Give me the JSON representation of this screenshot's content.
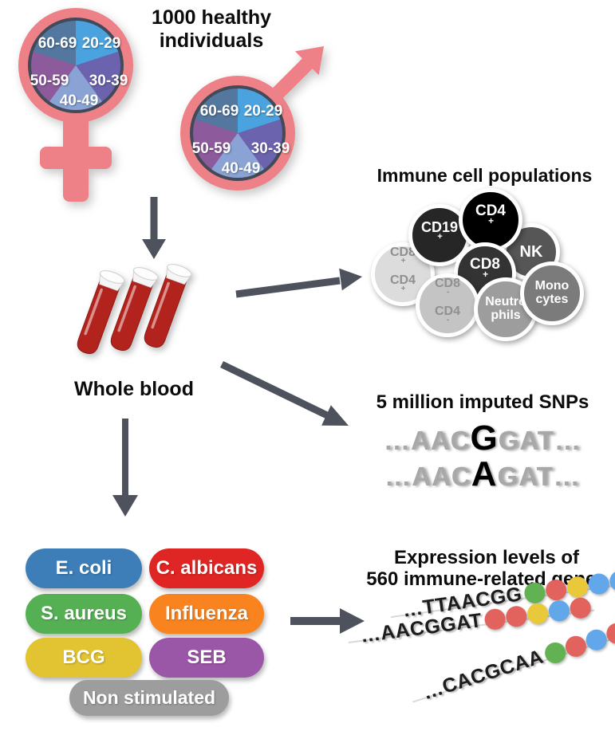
{
  "header": {
    "title": "1000 healthy\nindividuals"
  },
  "demographics": {
    "symbol_color": "#ee8187",
    "female_symbol": "female",
    "male_symbol": "male",
    "age_groups": [
      {
        "label": "20-29",
        "color": "#4aa3df"
      },
      {
        "label": "30-39",
        "color": "#6b63ae"
      },
      {
        "label": "40-49",
        "color": "#8aa3d4"
      },
      {
        "label": "50-59",
        "color": "#8d5a9c"
      },
      {
        "label": "60-69",
        "color": "#53779e"
      }
    ]
  },
  "whole_blood": {
    "label": "Whole blood",
    "tube_color": "#b2231d"
  },
  "immune_cells": {
    "title": "Immune cell populations",
    "cells": [
      {
        "color": "#dcdcdc",
        "text_color": "#909090",
        "lines": [
          {
            "t": "CD8",
            "s": "+"
          },
          {
            "t": "CD4",
            "s": "+"
          }
        ]
      },
      {
        "color": "#262626",
        "text_color": "#ffffff",
        "lines": [
          {
            "t": "CD19",
            "s": "+"
          }
        ]
      },
      {
        "color": "#565656",
        "text_color": "#ffffff",
        "lines": [
          {
            "t": "NK",
            "s": ""
          }
        ]
      },
      {
        "color": "#000000",
        "text_color": "#ffffff",
        "lines": [
          {
            "t": "CD4",
            "s": "+"
          }
        ]
      },
      {
        "color": "#333333",
        "text_color": "#ffffff",
        "lines": [
          {
            "t": "CD8",
            "s": "+"
          }
        ]
      },
      {
        "color": "#c4c4c4",
        "text_color": "#909090",
        "lines": [
          {
            "t": "CD8",
            "s": "-"
          },
          {
            "t": "CD4",
            "s": "-"
          }
        ]
      },
      {
        "color": "#9d9d9d",
        "text_color": "#ffffff",
        "lines": [
          {
            "t": "Neutro",
            "s": ""
          },
          {
            "t": "phils",
            "s": ""
          }
        ]
      },
      {
        "color": "#7b7b7b",
        "text_color": "#ffffff",
        "lines": [
          {
            "t": "Mono",
            "s": ""
          },
          {
            "t": "cytes",
            "s": ""
          }
        ]
      }
    ]
  },
  "snps": {
    "title": "5 million imputed SNPs",
    "sequences": [
      {
        "prefix": "…AAC",
        "variant": "G",
        "suffix": "GAT…"
      },
      {
        "prefix": "…AAC",
        "variant": "A",
        "suffix": "GAT…"
      }
    ]
  },
  "stimuli": {
    "items": [
      {
        "label": "E. coli",
        "color": "#3d7eb8"
      },
      {
        "label": "C. albicans",
        "color": "#e02624"
      },
      {
        "label": "S. aureus",
        "color": "#55b054"
      },
      {
        "label": "Influenza",
        "color": "#f8831f"
      },
      {
        "label": "BCG",
        "color": "#e2c433"
      },
      {
        "label": "SEB",
        "color": "#9b57a7"
      },
      {
        "label": "Non stimulated",
        "color": "#9d9d9d"
      }
    ]
  },
  "expression": {
    "title": "Expression levels of\n560 immune-related genes",
    "dot_colors": {
      "green": "#62b152",
      "red": "#e2635d",
      "yellow": "#e9c83a",
      "blue": "#61a7ea"
    },
    "strands": [
      {
        "sequence": "…TTAACGG",
        "dots": [
          "green",
          "red",
          "yellow",
          "blue",
          "blue"
        ]
      },
      {
        "sequence": "…AACGGAT",
        "dots": [
          "red",
          "red",
          "yellow",
          "blue",
          "red"
        ]
      },
      {
        "sequence": "…CACGCAA",
        "dots": [
          "green",
          "red",
          "blue",
          "red",
          "red"
        ]
      }
    ]
  },
  "arrows": {
    "color": "#4d525c"
  }
}
